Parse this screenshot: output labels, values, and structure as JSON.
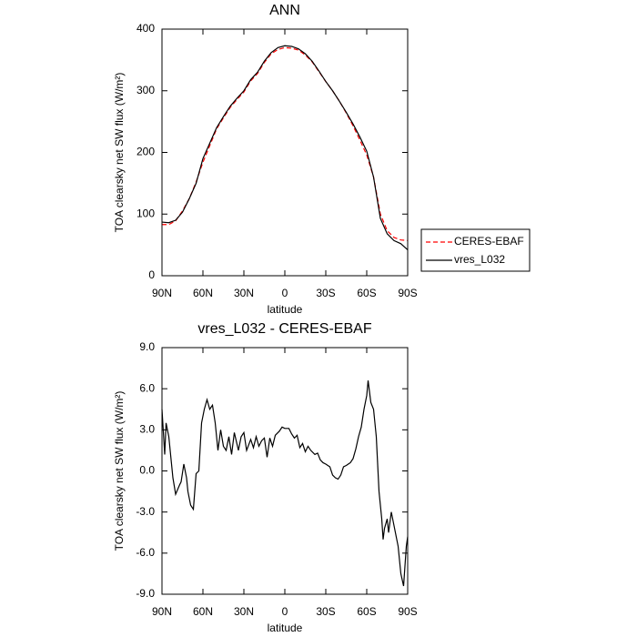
{
  "chart_data": [
    {
      "type": "line",
      "title": "ANN",
      "xlabel": "latitude",
      "ylabel": "TOA clearsky net SW flux (W/m²)",
      "x": [
        90,
        85,
        80,
        75,
        70,
        65,
        60,
        55,
        50,
        45,
        40,
        35,
        30,
        25,
        20,
        15,
        10,
        5,
        0,
        -5,
        -10,
        -15,
        -20,
        -25,
        -30,
        -35,
        -40,
        -45,
        -50,
        -55,
        -60,
        -65,
        -70,
        -75,
        -80,
        -85,
        -90
      ],
      "series": [
        {
          "name": "CERES-EBAF",
          "color": "#ff0000",
          "style": "dashed",
          "values": [
            83,
            83,
            89,
            105,
            125,
            152,
            184,
            211,
            238,
            256,
            273,
            286,
            298,
            316,
            328,
            346,
            360,
            367,
            370,
            369,
            366,
            358,
            347,
            331,
            315,
            300,
            283,
            264,
            243,
            220,
            196,
            160,
            100,
            73,
            62,
            58,
            57
          ]
        },
        {
          "name": "vres_L032",
          "color": "#000000",
          "style": "solid",
          "values": [
            87,
            86,
            90,
            103,
            125,
            150,
            190,
            215,
            240,
            258,
            275,
            288,
            300,
            318,
            330,
            348,
            362,
            370,
            373,
            372,
            368,
            360,
            348,
            332,
            315,
            300,
            283,
            265,
            246,
            225,
            202,
            160,
            93,
            68,
            57,
            52,
            42
          ]
        }
      ],
      "xlim": [
        90,
        -90
      ],
      "xticks": [
        {
          "value": 90,
          "label": "90N"
        },
        {
          "value": 60,
          "label": "60N"
        },
        {
          "value": 30,
          "label": "30N"
        },
        0,
        {
          "value": -30,
          "label": "30S"
        },
        {
          "value": -60,
          "label": "60S"
        },
        {
          "value": -90,
          "label": "90S"
        }
      ],
      "ylim": [
        0,
        400
      ],
      "yticks": [
        0,
        100,
        200,
        300,
        400
      ],
      "legend": "right"
    },
    {
      "type": "line",
      "title": "vres_L032 - CERES-EBAF",
      "xlabel": "latitude",
      "ylabel": "TOA clearsky net SW flux (W/m²)",
      "x": [
        90,
        88,
        87,
        85,
        82,
        80,
        77,
        76,
        74,
        72,
        71,
        69,
        67,
        65,
        63,
        61,
        59,
        57,
        55,
        53,
        51,
        49,
        47,
        45,
        43,
        41,
        39,
        37,
        34,
        32,
        30,
        28,
        25,
        23,
        21,
        19,
        17,
        15,
        13,
        11,
        9,
        7,
        4,
        2,
        0,
        -3,
        -5,
        -7,
        -9,
        -11,
        -13,
        -15,
        -17,
        -19,
        -22,
        -24,
        -26,
        -28,
        -30,
        -33,
        -35,
        -37,
        -39,
        -41,
        -43,
        -45,
        -48,
        -50,
        -52,
        -54,
        -56,
        -58,
        -60,
        -61,
        -63,
        -65,
        -67,
        -69,
        -71,
        -72,
        -73,
        -75,
        -76,
        -78,
        -79,
        -81,
        -83,
        -85,
        -87,
        -89,
        -90
      ],
      "series": [
        {
          "name": "vres_L032",
          "color": "#000000",
          "style": "solid",
          "values": [
            4.5,
            1.2,
            3.5,
            2.5,
            -0.5,
            -1.7,
            -1.0,
            -0.8,
            0.5,
            -0.5,
            -1.5,
            -2.5,
            -2.8,
            -0.2,
            0.0,
            3.5,
            4.5,
            5.2,
            4.5,
            4.8,
            3.5,
            1.5,
            3.0,
            1.8,
            1.5,
            2.5,
            1.2,
            2.8,
            1.5,
            2.5,
            2.8,
            1.5,
            2.3,
            1.7,
            2.5,
            1.8,
            2.2,
            2.4,
            1.0,
            2.4,
            1.8,
            2.6,
            2.9,
            3.2,
            3.1,
            3.1,
            2.7,
            2.4,
            2.6,
            1.7,
            2.0,
            1.4,
            1.8,
            1.5,
            1.2,
            1.3,
            0.8,
            0.6,
            0.5,
            0.3,
            -0.3,
            -0.5,
            -0.6,
            -0.3,
            0.3,
            0.4,
            0.6,
            0.9,
            1.6,
            2.5,
            3.2,
            4.5,
            5.5,
            6.6,
            5.0,
            4.5,
            2.5,
            -1.5,
            -3.5,
            -5.0,
            -4.2,
            -3.5,
            -4.5,
            -3.0,
            -3.5,
            -4.5,
            -5.5,
            -7.5,
            -8.4,
            -5.5,
            -4.8
          ]
        }
      ],
      "xlim": [
        90,
        -90
      ],
      "xticks": [
        {
          "value": 90,
          "label": "90N"
        },
        {
          "value": 60,
          "label": "60N"
        },
        {
          "value": 30,
          "label": "30N"
        },
        0,
        {
          "value": -30,
          "label": "30S"
        },
        {
          "value": -60,
          "label": "60S"
        },
        {
          "value": -90,
          "label": "90S"
        }
      ],
      "ylim": [
        -9,
        9
      ],
      "yticks": [
        {
          "value": -9,
          "label": "-9.0"
        },
        {
          "value": -6,
          "label": "-6.0"
        },
        {
          "value": -3,
          "label": "-3.0"
        },
        {
          "value": 0,
          "label": "0.0"
        },
        {
          "value": 3,
          "label": "3.0"
        },
        {
          "value": 6,
          "label": "6.0"
        },
        {
          "value": 9,
          "label": "9.0"
        }
      ]
    }
  ]
}
